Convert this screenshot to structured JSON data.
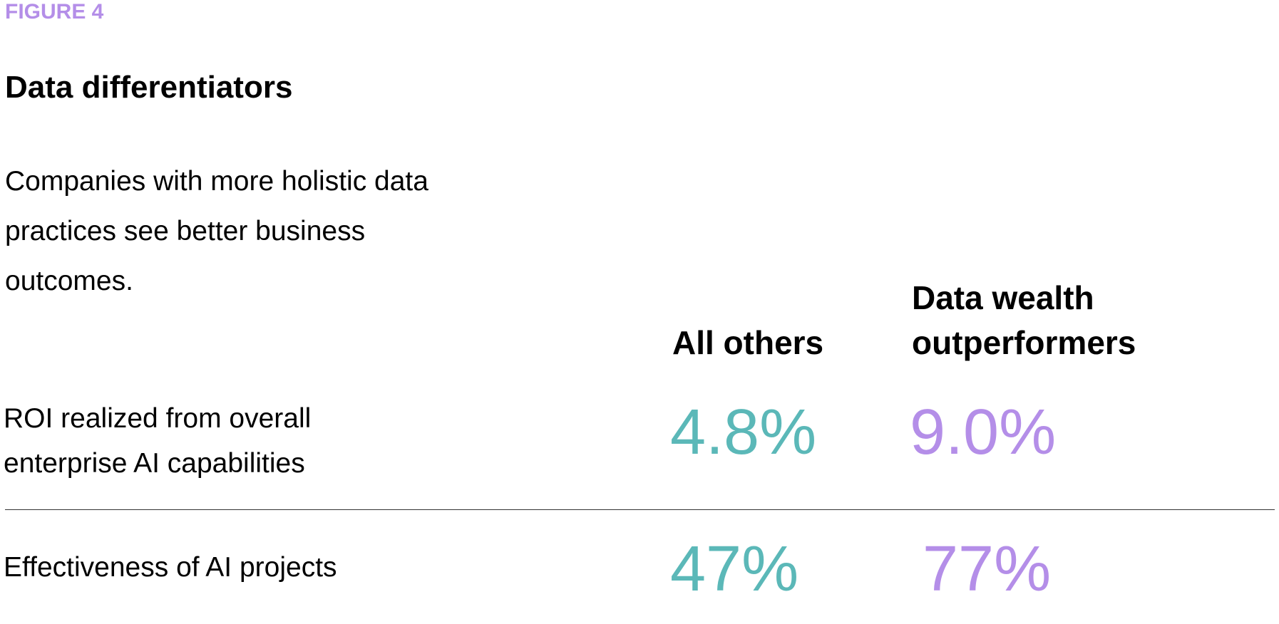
{
  "figure_label": "FIGURE 4",
  "title": "Data differentiators",
  "subtitle": "Companies with more holistic data practices see better business outcomes.",
  "table": {
    "columns": [
      "All others",
      "Data wealth outperformers"
    ],
    "rows": [
      {
        "label": "ROI realized from overall enterprise AI capabilities",
        "values": [
          "4.8%",
          "9.0%"
        ]
      },
      {
        "label": "Effectiveness of AI projects",
        "values": [
          "47%",
          "77%"
        ]
      }
    ]
  }
}
